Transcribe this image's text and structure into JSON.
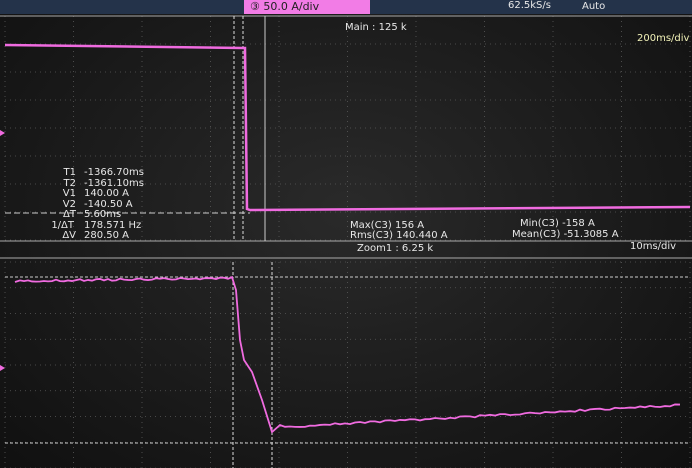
{
  "header": {
    "channel_scale": "③ 50.0 A/div",
    "sample_rate": "62.5kS/s",
    "trigger_mode": "Auto"
  },
  "main_panel": {
    "label": "Main : 125 k",
    "timebase": "200ms/div"
  },
  "cursors": {
    "rows": [
      {
        "k": "T1",
        "v": "-1366.70ms"
      },
      {
        "k": "T2",
        "v": "-1361.10ms"
      },
      {
        "k": "V1",
        "v": "140.00 A"
      },
      {
        "k": "V2",
        "v": "-140.50 A"
      },
      {
        "k": "ΔT",
        "v": "5.60ms"
      },
      {
        "k": "1/ΔT",
        "v": "178.571 Hz"
      },
      {
        "k": "ΔV",
        "v": "280.50 A"
      }
    ]
  },
  "measurements": {
    "max": "Max(C3)  156 A",
    "rms": "Rms(C3)  140.440 A",
    "min": "Min(C3)  -158 A",
    "mean": "Mean(C3)  -51.3085 A"
  },
  "zoom_panel": {
    "label": "Zoom1 : 6.25 k",
    "timebase": "10ms/div"
  },
  "colors": {
    "trace": "#f06be0",
    "label_bg": "#f27ce6",
    "grid": "#5a5a5a"
  }
}
